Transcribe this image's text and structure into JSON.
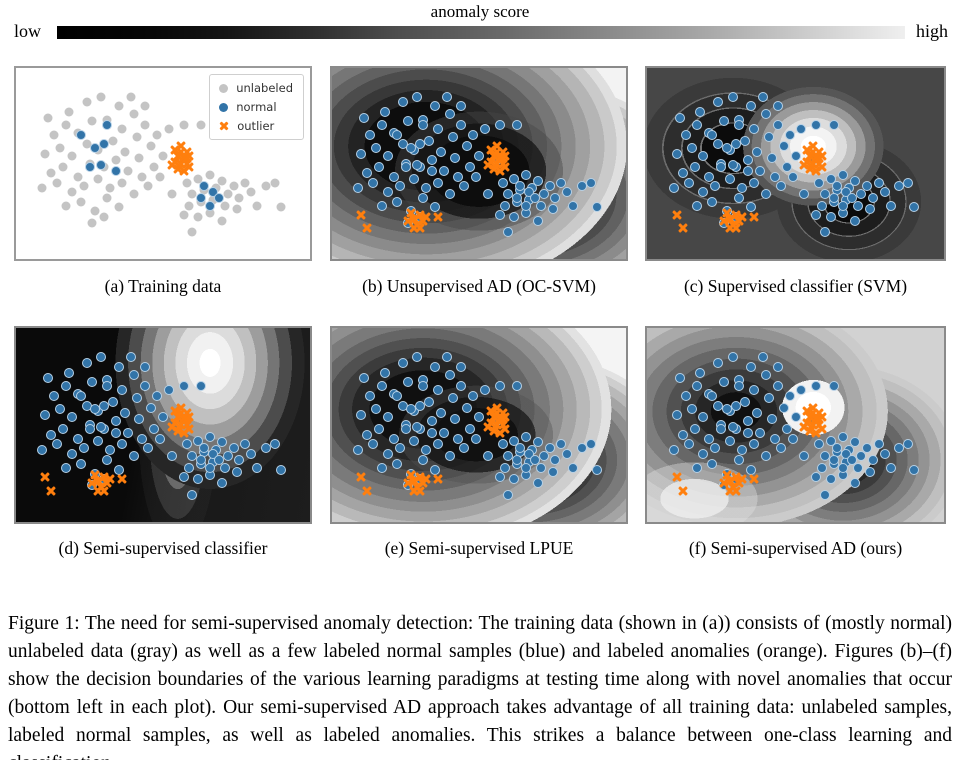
{
  "colorbar": {
    "title": "anomaly score",
    "low_label": "low",
    "high_label": "high",
    "gradient": [
      "#000000",
      "#efefef"
    ]
  },
  "legend": {
    "items": [
      {
        "label": "unlabeled",
        "marker": "circle",
        "color": "#c4c4c4"
      },
      {
        "label": "normal",
        "marker": "circle",
        "color": "#3274a8"
      },
      {
        "label": "outlier",
        "marker": "x",
        "color": "#ff7f0e"
      }
    ]
  },
  "colors": {
    "gray_point": "#c4c4c4",
    "blue_point": "#3274a8",
    "orange_point": "#ff7f0e",
    "score_low": "#000000",
    "score_high": "#efefef"
  },
  "points": {
    "cluster1": [
      [
        18,
        23
      ],
      [
        24,
        18
      ],
      [
        29,
        15
      ],
      [
        35,
        20
      ],
      [
        40,
        24
      ],
      [
        44,
        30
      ],
      [
        13,
        35
      ],
      [
        17,
        30
      ],
      [
        21,
        34
      ],
      [
        26,
        28
      ],
      [
        31,
        27
      ],
      [
        36,
        32
      ],
      [
        41,
        36
      ],
      [
        46,
        41
      ],
      [
        10,
        45
      ],
      [
        15,
        42
      ],
      [
        19,
        46
      ],
      [
        24,
        40
      ],
      [
        28,
        43
      ],
      [
        33,
        38
      ],
      [
        37,
        44
      ],
      [
        42,
        47
      ],
      [
        47,
        52
      ],
      [
        12,
        55
      ],
      [
        16,
        52
      ],
      [
        21,
        57
      ],
      [
        25,
        50
      ],
      [
        30,
        52
      ],
      [
        34,
        48
      ],
      [
        38,
        54
      ],
      [
        43,
        57
      ],
      [
        9,
        63
      ],
      [
        14,
        60
      ],
      [
        19,
        65
      ],
      [
        23,
        62
      ],
      [
        28,
        58
      ],
      [
        32,
        63
      ],
      [
        36,
        60
      ],
      [
        40,
        66
      ],
      [
        45,
        62
      ],
      [
        17,
        72
      ],
      [
        22,
        70
      ],
      [
        27,
        75
      ],
      [
        31,
        68
      ],
      [
        35,
        73
      ],
      [
        26,
        81
      ],
      [
        30,
        78
      ],
      [
        44,
        20
      ],
      [
        48,
        35
      ],
      [
        50,
        46
      ],
      [
        11,
        26
      ],
      [
        39,
        15
      ]
    ],
    "cluster2": [
      [
        58,
        60
      ],
      [
        62,
        58
      ],
      [
        66,
        56
      ],
      [
        70,
        59
      ],
      [
        74,
        62
      ],
      [
        78,
        60
      ],
      [
        60,
        66
      ],
      [
        64,
        64
      ],
      [
        68,
        63
      ],
      [
        72,
        66
      ],
      [
        76,
        68
      ],
      [
        80,
        65
      ],
      [
        59,
        72
      ],
      [
        63,
        70
      ],
      [
        67,
        69
      ],
      [
        71,
        72
      ],
      [
        75,
        74
      ],
      [
        62,
        78
      ],
      [
        66,
        76
      ],
      [
        70,
        80
      ],
      [
        82,
        72
      ],
      [
        57,
        77
      ]
    ],
    "extra_scatter": [
      [
        52,
        32
      ],
      [
        57,
        30
      ],
      [
        63,
        30
      ],
      [
        49,
        57
      ],
      [
        85,
        62
      ],
      [
        88,
        60
      ],
      [
        53,
        66
      ],
      [
        90,
        73
      ],
      [
        60,
        86
      ],
      [
        56,
        48
      ]
    ],
    "labeled_normal_c1": [
      [
        22,
        35
      ],
      [
        27,
        42
      ],
      [
        30,
        40
      ],
      [
        25,
        52
      ],
      [
        29,
        51
      ],
      [
        34,
        54
      ],
      [
        31,
        30
      ]
    ],
    "labeled_normal_c2": [
      [
        64,
        62
      ],
      [
        67,
        65
      ],
      [
        69,
        68
      ],
      [
        66,
        72
      ],
      [
        63,
        68
      ]
    ],
    "outliers_train": [
      [
        54,
        43
      ],
      [
        56,
        41
      ],
      [
        58,
        44
      ],
      [
        55,
        46
      ],
      [
        57,
        47
      ],
      [
        59,
        46
      ],
      [
        54,
        49
      ],
      [
        56,
        50
      ],
      [
        58,
        50
      ],
      [
        55,
        53
      ],
      [
        57,
        54
      ],
      [
        53,
        51
      ],
      [
        59,
        52
      ],
      [
        56,
        44
      ],
      [
        58,
        47
      ]
    ],
    "outliers_novel": [
      [
        10,
        77
      ],
      [
        12,
        84
      ],
      [
        26,
        80
      ],
      [
        27,
        76
      ],
      [
        28,
        79
      ],
      [
        29,
        82
      ],
      [
        30,
        77
      ],
      [
        31,
        80
      ],
      [
        28,
        84
      ],
      [
        30,
        84
      ],
      [
        32,
        78
      ],
      [
        36,
        78
      ]
    ]
  },
  "panels": [
    {
      "id": "a",
      "caption": "(a) Training data",
      "kind": "training-scatter",
      "layers": [
        {
          "group": "cluster1",
          "marker": "circle",
          "color": "gray"
        },
        {
          "group": "cluster2",
          "marker": "circle",
          "color": "gray"
        },
        {
          "group": "extra_scatter",
          "marker": "circle",
          "color": "gray"
        },
        {
          "group": "labeled_normal_c1",
          "marker": "circle",
          "color": "blue"
        },
        {
          "group": "labeled_normal_c2",
          "marker": "circle",
          "color": "blue"
        },
        {
          "group": "outliers_train",
          "marker": "x",
          "color": "orange"
        }
      ]
    },
    {
      "id": "b",
      "caption": "(b) Unsupervised AD (OC-SVM)",
      "kind": "contour",
      "layers": [
        {
          "group": "cluster1",
          "marker": "circle",
          "color": "blue"
        },
        {
          "group": "cluster2",
          "marker": "circle",
          "color": "blue"
        },
        {
          "group": "extra_scatter",
          "marker": "circle",
          "color": "blue"
        },
        {
          "group": "labeled_normal_c1",
          "marker": "circle",
          "color": "blue"
        },
        {
          "group": "labeled_normal_c2",
          "marker": "circle",
          "color": "blue"
        },
        {
          "group": "outliers_train",
          "marker": "x",
          "color": "orange"
        },
        {
          "group": "outliers_novel",
          "marker": "x",
          "color": "orange"
        }
      ]
    },
    {
      "id": "c",
      "caption": "(c) Supervised classifier (SVM)",
      "kind": "contour",
      "layers": [
        {
          "group": "cluster1",
          "marker": "circle",
          "color": "blue"
        },
        {
          "group": "cluster2",
          "marker": "circle",
          "color": "blue"
        },
        {
          "group": "extra_scatter",
          "marker": "circle",
          "color": "blue"
        },
        {
          "group": "labeled_normal_c1",
          "marker": "circle",
          "color": "blue"
        },
        {
          "group": "labeled_normal_c2",
          "marker": "circle",
          "color": "blue"
        },
        {
          "group": "outliers_train",
          "marker": "x",
          "color": "orange"
        },
        {
          "group": "outliers_novel",
          "marker": "x",
          "color": "orange"
        }
      ]
    },
    {
      "id": "d",
      "caption": "(d) Semi-supervised classifier",
      "kind": "contour",
      "layers": [
        {
          "group": "cluster1",
          "marker": "circle",
          "color": "blue"
        },
        {
          "group": "cluster2",
          "marker": "circle",
          "color": "blue"
        },
        {
          "group": "extra_scatter",
          "marker": "circle",
          "color": "blue"
        },
        {
          "group": "labeled_normal_c1",
          "marker": "circle",
          "color": "blue"
        },
        {
          "group": "labeled_normal_c2",
          "marker": "circle",
          "color": "blue"
        },
        {
          "group": "outliers_train",
          "marker": "x",
          "color": "orange"
        },
        {
          "group": "outliers_novel",
          "marker": "x",
          "color": "orange"
        }
      ]
    },
    {
      "id": "e",
      "caption": "(e) Semi-supervised LPUE",
      "kind": "contour",
      "layers": [
        {
          "group": "cluster1",
          "marker": "circle",
          "color": "blue"
        },
        {
          "group": "cluster2",
          "marker": "circle",
          "color": "blue"
        },
        {
          "group": "extra_scatter",
          "marker": "circle",
          "color": "blue"
        },
        {
          "group": "labeled_normal_c1",
          "marker": "circle",
          "color": "blue"
        },
        {
          "group": "labeled_normal_c2",
          "marker": "circle",
          "color": "blue"
        },
        {
          "group": "outliers_train",
          "marker": "x",
          "color": "orange"
        },
        {
          "group": "outliers_novel",
          "marker": "x",
          "color": "orange"
        }
      ]
    },
    {
      "id": "f",
      "caption": "(f) Semi-supervised AD (ours)",
      "kind": "contour",
      "layers": [
        {
          "group": "cluster1",
          "marker": "circle",
          "color": "blue"
        },
        {
          "group": "cluster2",
          "marker": "circle",
          "color": "blue"
        },
        {
          "group": "extra_scatter",
          "marker": "circle",
          "color": "blue"
        },
        {
          "group": "labeled_normal_c1",
          "marker": "circle",
          "color": "blue"
        },
        {
          "group": "labeled_normal_c2",
          "marker": "circle",
          "color": "blue"
        },
        {
          "group": "outliers_train",
          "marker": "x",
          "color": "orange"
        },
        {
          "group": "outliers_novel",
          "marker": "x",
          "color": "orange"
        }
      ]
    }
  ],
  "caption": {
    "text": "Figure 1: The need for semi-supervised anomaly detection: The training data (shown in (a)) consists of (mostly normal) unlabeled data (gray) as well as a few labeled normal samples (blue) and labeled anomalies (orange). Figures (b)–(f) show the decision boundaries of the various learning paradigms at testing time along with novel anomalies that occur (bottom left in each plot). Our semi-supervised AD approach takes advantage of all training data: unlabeled samples, labeled normal samples, as well as labeled anomalies. This strikes a balance between one-class learning and classification."
  },
  "chart_data": {
    "type": "scatter",
    "title": "The need for semi-supervised anomaly detection",
    "subplots": [
      "(a) Training data",
      "(b) Unsupervised AD (OC-SVM)",
      "(c) Supervised classifier (SVM)",
      "(d) Semi-supervised classifier",
      "(e) Semi-supervised LPUE",
      "(f) Semi-supervised AD (ours)"
    ],
    "legend_entries": [
      "unlabeled",
      "normal",
      "outlier"
    ],
    "colorbar_label": "anomaly score",
    "colorbar_range_labels": [
      "low",
      "high"
    ]
  }
}
